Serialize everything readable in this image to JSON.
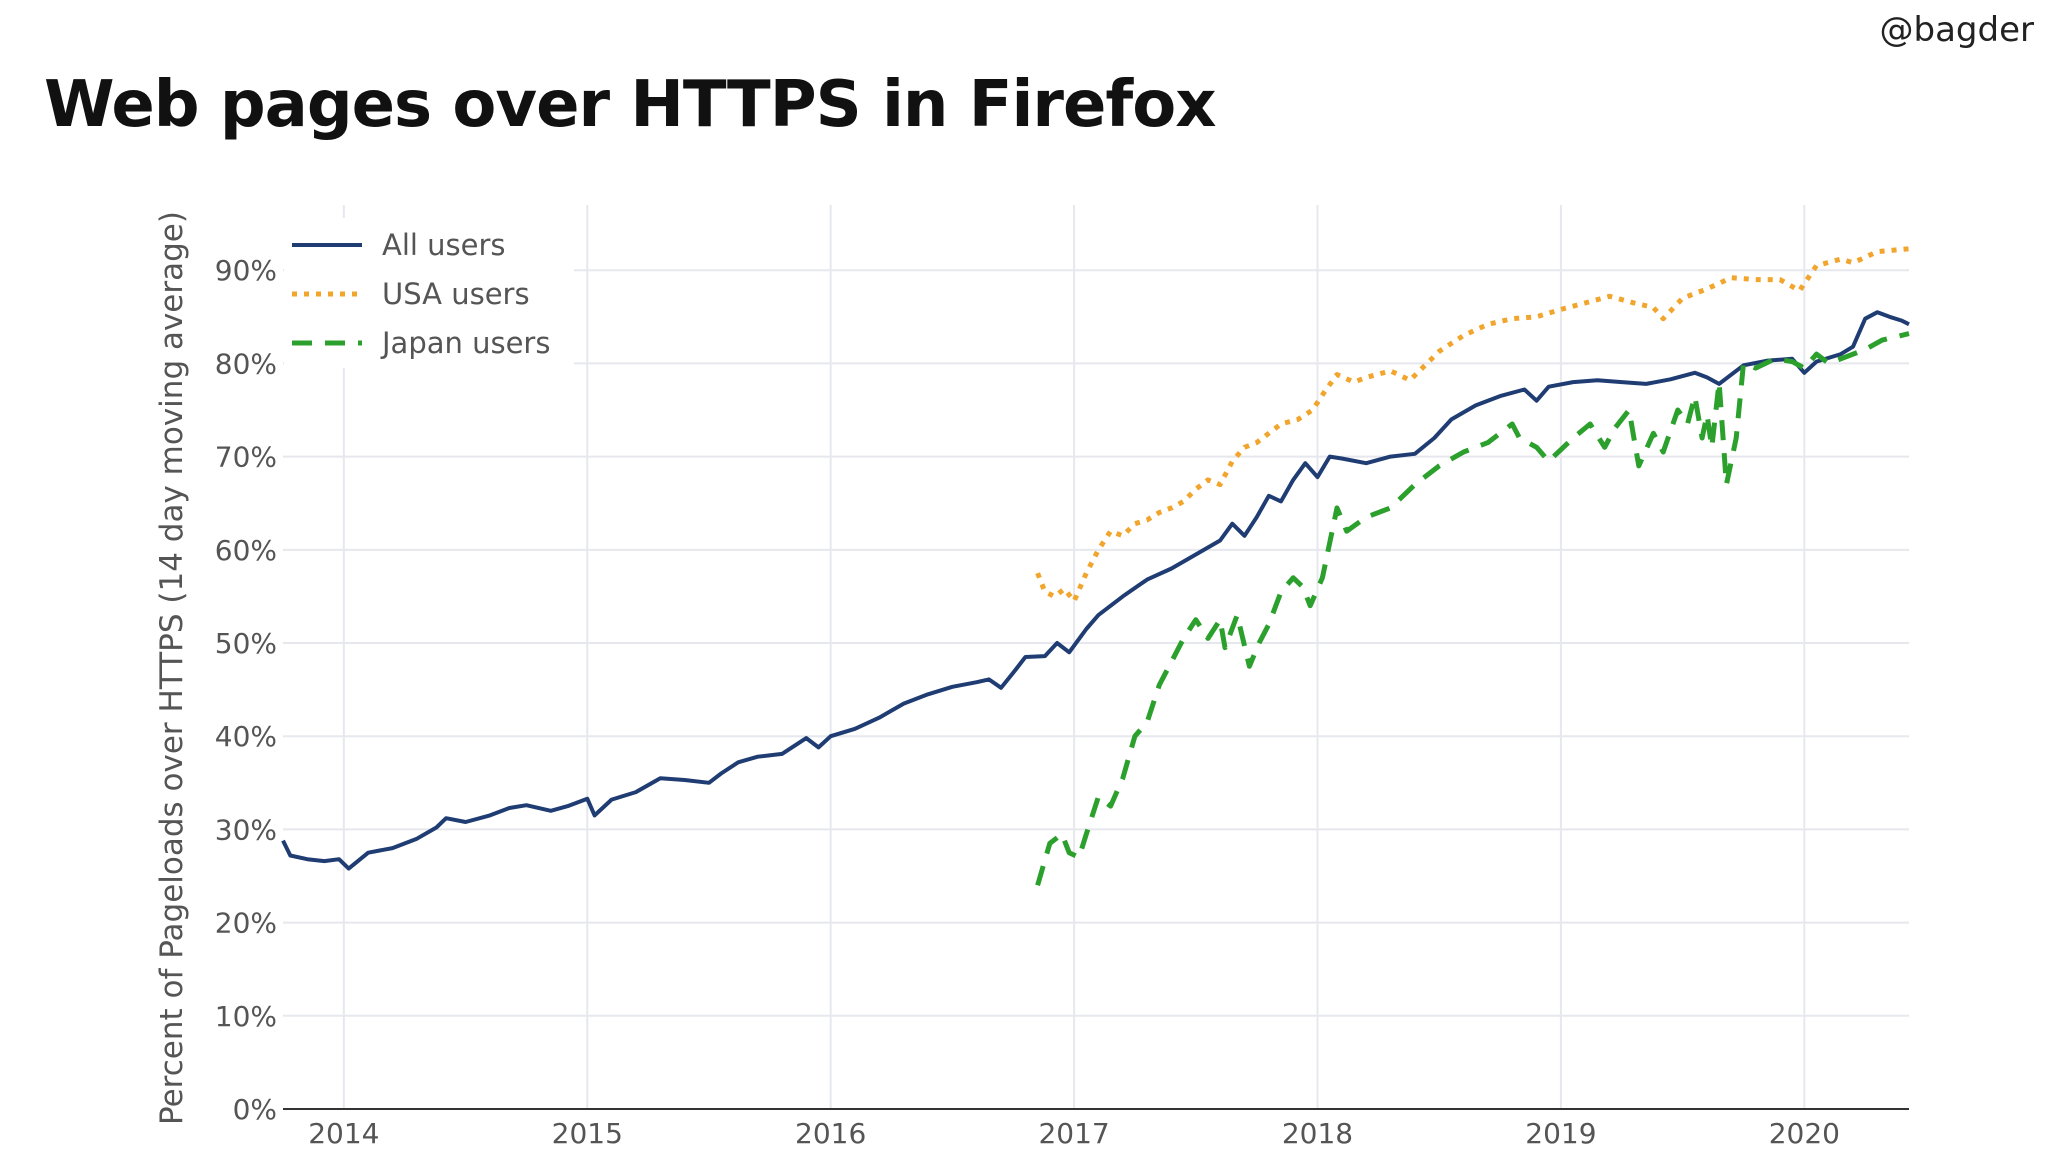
{
  "handle": "@bagder",
  "title": "Web pages over HTTPS in Firefox",
  "chart_data": {
    "type": "line",
    "title": "Web pages over HTTPS in Firefox",
    "xlabel": "",
    "ylabel": "Percent of Pageloads over HTTPS (14 day moving average)",
    "xlim": [
      2013.75,
      2020.43
    ],
    "ylim": [
      0,
      97
    ],
    "x_ticks": [
      2014,
      2015,
      2016,
      2017,
      2018,
      2019,
      2020
    ],
    "x_tick_labels": [
      "2014",
      "2015",
      "2016",
      "2017",
      "2018",
      "2019",
      "2020"
    ],
    "y_ticks": [
      0,
      10,
      20,
      30,
      40,
      50,
      60,
      70,
      80,
      90
    ],
    "y_tick_labels": [
      "0%",
      "10%",
      "20%",
      "30%",
      "40%",
      "50%",
      "60%",
      "70%",
      "80%",
      "90%"
    ],
    "grid": true,
    "legend": "top-left",
    "series": [
      {
        "name": "All users",
        "color": "#1f3d73",
        "style": "solid",
        "points": [
          [
            2013.75,
            28.8
          ],
          [
            2013.78,
            27.2
          ],
          [
            2013.85,
            26.8
          ],
          [
            2013.92,
            26.6
          ],
          [
            2013.98,
            26.8
          ],
          [
            2014.02,
            25.8
          ],
          [
            2014.1,
            27.5
          ],
          [
            2014.2,
            28.0
          ],
          [
            2014.3,
            29.0
          ],
          [
            2014.38,
            30.2
          ],
          [
            2014.42,
            31.2
          ],
          [
            2014.5,
            30.8
          ],
          [
            2014.6,
            31.5
          ],
          [
            2014.68,
            32.3
          ],
          [
            2014.75,
            32.6
          ],
          [
            2014.85,
            32.0
          ],
          [
            2014.92,
            32.5
          ],
          [
            2015.0,
            33.3
          ],
          [
            2015.03,
            31.5
          ],
          [
            2015.1,
            33.2
          ],
          [
            2015.2,
            34.0
          ],
          [
            2015.3,
            35.5
          ],
          [
            2015.4,
            35.3
          ],
          [
            2015.5,
            35.0
          ],
          [
            2015.55,
            36.0
          ],
          [
            2015.62,
            37.2
          ],
          [
            2015.7,
            37.8
          ],
          [
            2015.8,
            38.1
          ],
          [
            2015.9,
            39.8
          ],
          [
            2015.95,
            38.8
          ],
          [
            2016.0,
            40.0
          ],
          [
            2016.1,
            40.8
          ],
          [
            2016.2,
            42.0
          ],
          [
            2016.3,
            43.5
          ],
          [
            2016.4,
            44.5
          ],
          [
            2016.5,
            45.3
          ],
          [
            2016.6,
            45.8
          ],
          [
            2016.65,
            46.1
          ],
          [
            2016.7,
            45.2
          ],
          [
            2016.75,
            46.8
          ],
          [
            2016.8,
            48.5
          ],
          [
            2016.88,
            48.6
          ],
          [
            2016.93,
            50.0
          ],
          [
            2016.98,
            49.0
          ],
          [
            2017.05,
            51.5
          ],
          [
            2017.1,
            53.0
          ],
          [
            2017.2,
            55.0
          ],
          [
            2017.3,
            56.8
          ],
          [
            2017.4,
            58.0
          ],
          [
            2017.5,
            59.5
          ],
          [
            2017.6,
            61.0
          ],
          [
            2017.65,
            62.8
          ],
          [
            2017.7,
            61.5
          ],
          [
            2017.75,
            63.5
          ],
          [
            2017.8,
            65.8
          ],
          [
            2017.85,
            65.2
          ],
          [
            2017.9,
            67.5
          ],
          [
            2017.95,
            69.3
          ],
          [
            2018.0,
            67.8
          ],
          [
            2018.05,
            70.0
          ],
          [
            2018.1,
            69.8
          ],
          [
            2018.2,
            69.3
          ],
          [
            2018.3,
            70.0
          ],
          [
            2018.4,
            70.3
          ],
          [
            2018.48,
            72.0
          ],
          [
            2018.55,
            74.0
          ],
          [
            2018.65,
            75.5
          ],
          [
            2018.75,
            76.5
          ],
          [
            2018.85,
            77.2
          ],
          [
            2018.9,
            76.0
          ],
          [
            2018.95,
            77.5
          ],
          [
            2019.05,
            78.0
          ],
          [
            2019.15,
            78.2
          ],
          [
            2019.25,
            78.0
          ],
          [
            2019.35,
            77.8
          ],
          [
            2019.45,
            78.3
          ],
          [
            2019.55,
            79.0
          ],
          [
            2019.6,
            78.5
          ],
          [
            2019.65,
            77.8
          ],
          [
            2019.75,
            79.8
          ],
          [
            2019.85,
            80.3
          ],
          [
            2019.95,
            80.5
          ],
          [
            2020.0,
            79.0
          ],
          [
            2020.05,
            80.2
          ],
          [
            2020.15,
            81.0
          ],
          [
            2020.2,
            81.8
          ],
          [
            2020.25,
            84.8
          ],
          [
            2020.3,
            85.5
          ],
          [
            2020.35,
            85.0
          ],
          [
            2020.4,
            84.6
          ],
          [
            2020.43,
            84.2
          ]
        ]
      },
      {
        "name": "USA users",
        "color": "#f2a52c",
        "style": "dotted",
        "points": [
          [
            2016.85,
            57.5
          ],
          [
            2016.88,
            55.5
          ],
          [
            2016.92,
            55.0
          ],
          [
            2016.96,
            55.8
          ],
          [
            2017.0,
            54.5
          ],
          [
            2017.05,
            57.5
          ],
          [
            2017.1,
            60.0
          ],
          [
            2017.15,
            62.0
          ],
          [
            2017.2,
            61.5
          ],
          [
            2017.25,
            62.8
          ],
          [
            2017.3,
            63.2
          ],
          [
            2017.35,
            64.0
          ],
          [
            2017.4,
            64.5
          ],
          [
            2017.45,
            65.2
          ],
          [
            2017.5,
            66.5
          ],
          [
            2017.55,
            67.5
          ],
          [
            2017.6,
            67.0
          ],
          [
            2017.65,
            69.5
          ],
          [
            2017.7,
            71.0
          ],
          [
            2017.75,
            71.5
          ],
          [
            2017.8,
            72.5
          ],
          [
            2017.85,
            73.5
          ],
          [
            2017.92,
            74.0
          ],
          [
            2017.98,
            75.0
          ],
          [
            2018.03,
            77.0
          ],
          [
            2018.08,
            78.8
          ],
          [
            2018.15,
            78.0
          ],
          [
            2018.2,
            78.5
          ],
          [
            2018.3,
            79.2
          ],
          [
            2018.38,
            78.2
          ],
          [
            2018.45,
            80.0
          ],
          [
            2018.5,
            81.3
          ],
          [
            2018.6,
            83.0
          ],
          [
            2018.7,
            84.2
          ],
          [
            2018.8,
            84.8
          ],
          [
            2018.9,
            85.0
          ],
          [
            2019.0,
            85.8
          ],
          [
            2019.1,
            86.5
          ],
          [
            2019.2,
            87.2
          ],
          [
            2019.3,
            86.5
          ],
          [
            2019.38,
            86.0
          ],
          [
            2019.42,
            84.8
          ],
          [
            2019.5,
            87.0
          ],
          [
            2019.6,
            88.0
          ],
          [
            2019.7,
            89.2
          ],
          [
            2019.8,
            89.0
          ],
          [
            2019.9,
            89.0
          ],
          [
            2019.98,
            87.8
          ],
          [
            2020.05,
            90.5
          ],
          [
            2020.15,
            91.2
          ],
          [
            2020.2,
            90.8
          ],
          [
            2020.3,
            92.0
          ],
          [
            2020.43,
            92.3
          ]
        ]
      },
      {
        "name": "Japan users",
        "color": "#2ca02c",
        "style": "dashed",
        "points": [
          [
            2016.85,
            24.0
          ],
          [
            2016.9,
            28.5
          ],
          [
            2016.95,
            29.5
          ],
          [
            2016.98,
            27.5
          ],
          [
            2017.02,
            27.0
          ],
          [
            2017.05,
            29.5
          ],
          [
            2017.1,
            33.5
          ],
          [
            2017.15,
            32.5
          ],
          [
            2017.2,
            35.5
          ],
          [
            2017.25,
            40.0
          ],
          [
            2017.3,
            41.5
          ],
          [
            2017.35,
            45.5
          ],
          [
            2017.4,
            48.0
          ],
          [
            2017.45,
            50.5
          ],
          [
            2017.5,
            52.5
          ],
          [
            2017.55,
            50.5
          ],
          [
            2017.6,
            52.5
          ],
          [
            2017.62,
            49.5
          ],
          [
            2017.67,
            53.0
          ],
          [
            2017.72,
            47.5
          ],
          [
            2017.76,
            50.0
          ],
          [
            2017.8,
            52.0
          ],
          [
            2017.85,
            55.5
          ],
          [
            2017.9,
            57.0
          ],
          [
            2017.94,
            56.0
          ],
          [
            2017.97,
            54.0
          ],
          [
            2018.02,
            57.0
          ],
          [
            2018.08,
            64.5
          ],
          [
            2018.12,
            62.0
          ],
          [
            2018.2,
            63.5
          ],
          [
            2018.3,
            64.5
          ],
          [
            2018.4,
            67.0
          ],
          [
            2018.5,
            69.0
          ],
          [
            2018.6,
            70.5
          ],
          [
            2018.7,
            71.5
          ],
          [
            2018.8,
            73.5
          ],
          [
            2018.83,
            72.0
          ],
          [
            2018.9,
            71.0
          ],
          [
            2018.95,
            69.5
          ],
          [
            2019.05,
            72.0
          ],
          [
            2019.12,
            73.5
          ],
          [
            2019.18,
            71.0
          ],
          [
            2019.22,
            73.0
          ],
          [
            2019.28,
            75.0
          ],
          [
            2019.3,
            72.0
          ],
          [
            2019.32,
            69.0
          ],
          [
            2019.38,
            72.5
          ],
          [
            2019.42,
            70.5
          ],
          [
            2019.48,
            75.0
          ],
          [
            2019.52,
            73.5
          ],
          [
            2019.55,
            76.5
          ],
          [
            2019.58,
            72.0
          ],
          [
            2019.6,
            74.5
          ],
          [
            2019.62,
            71.0
          ],
          [
            2019.65,
            78.0
          ],
          [
            2019.68,
            67.0
          ],
          [
            2019.72,
            72.0
          ],
          [
            2019.75,
            80.0
          ],
          [
            2019.8,
            79.5
          ],
          [
            2019.88,
            80.5
          ],
          [
            2019.95,
            80.2
          ],
          [
            2020.0,
            79.5
          ],
          [
            2020.05,
            81.0
          ],
          [
            2020.1,
            80.0
          ],
          [
            2020.15,
            80.5
          ],
          [
            2020.25,
            81.5
          ],
          [
            2020.32,
            82.5
          ],
          [
            2020.43,
            83.2
          ]
        ]
      }
    ]
  }
}
